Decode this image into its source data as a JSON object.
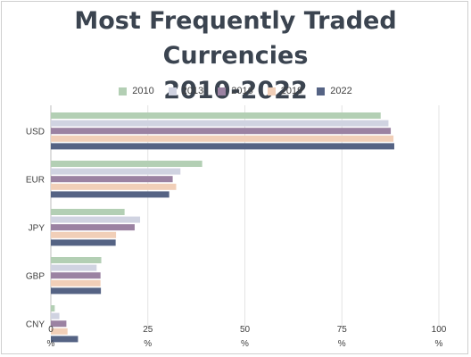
{
  "chart_data": {
    "type": "bar",
    "orientation": "horizontal",
    "title": "Most Frequently Traded Currencies 2010-2022",
    "title_lines": [
      "Most Frequently Traded Currencies",
      "2010-2022"
    ],
    "categories": [
      "USD",
      "EUR",
      "JPY",
      "GBP",
      "CNY"
    ],
    "series": [
      {
        "name": "2010",
        "color": "#b3cfb4",
        "values": [
          85,
          39,
          19,
          13,
          1
        ]
      },
      {
        "name": "2013",
        "color": "#d0d3e1",
        "values": [
          87,
          33.4,
          23,
          11.8,
          2.2
        ]
      },
      {
        "name": "2016",
        "color": "#9b82a2",
        "values": [
          87.6,
          31.4,
          21.6,
          12.8,
          4
        ]
      },
      {
        "name": "2019",
        "color": "#f1cfb8",
        "values": [
          88.3,
          32.3,
          16.8,
          12.8,
          4.3
        ]
      },
      {
        "name": "2022",
        "color": "#556384",
        "values": [
          88.5,
          30.5,
          16.7,
          12.9,
          7
        ]
      }
    ],
    "xlim": [
      0,
      100
    ],
    "x_ticks": [
      {
        "value": 0,
        "label": "0",
        "unit": "%"
      },
      {
        "value": 25,
        "label": "25",
        "unit": "%"
      },
      {
        "value": 50,
        "label": "50",
        "unit": "%"
      },
      {
        "value": 75,
        "label": "75",
        "unit": "%"
      },
      {
        "value": 100,
        "label": "100",
        "unit": "%"
      }
    ],
    "xlabel": "",
    "ylabel": "",
    "grid": "vertical",
    "legend_position": "top"
  }
}
